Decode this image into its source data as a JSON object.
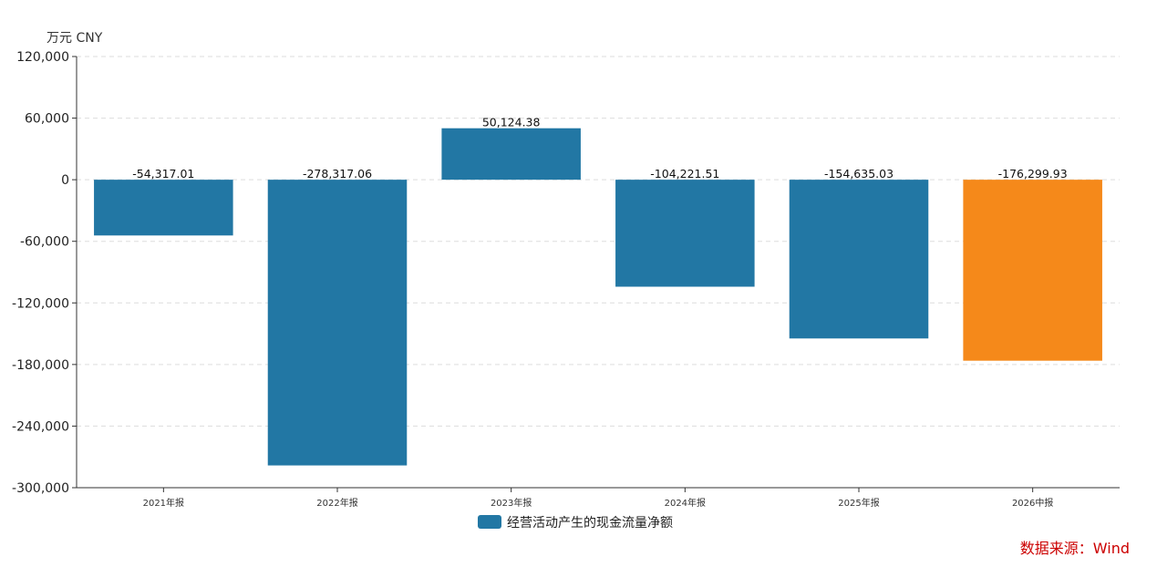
{
  "chart_data": {
    "type": "bar",
    "unit": "万元  CNY",
    "categories": [
      "2021年报",
      "2022年报",
      "2023年报",
      "2024年报",
      "2025年报",
      "2026中报"
    ],
    "series": [
      {
        "name": "经营活动产生的现金流量净额",
        "values": [
          -54317.01,
          -278317.06,
          50124.38,
          -104221.51,
          -154635.03,
          -176299.93
        ],
        "data_labels": [
          "-54,317.01",
          "-278,317.06",
          "50,124.38",
          "-104,221.51",
          "-154,635.03",
          "-176,299.93"
        ]
      }
    ],
    "ylim": [
      -300000,
      120000
    ],
    "yticks": [
      120000,
      60000,
      0,
      -60000,
      -120000,
      -180000,
      -240000,
      -300000
    ],
    "ytick_labels": [
      "120,000",
      "60,000",
      "0",
      "-60,000",
      "-120,000",
      "-180,000",
      "-240,000",
      "-300,000"
    ],
    "grid": true,
    "legend_position": "bottom-center",
    "colors": {
      "bar": "#2277a4",
      "highlight_bar": "#f5891a",
      "grid": "#dddddd",
      "axis": "#333333"
    },
    "highlight_index": 5
  },
  "source": "数据来源：Wind"
}
